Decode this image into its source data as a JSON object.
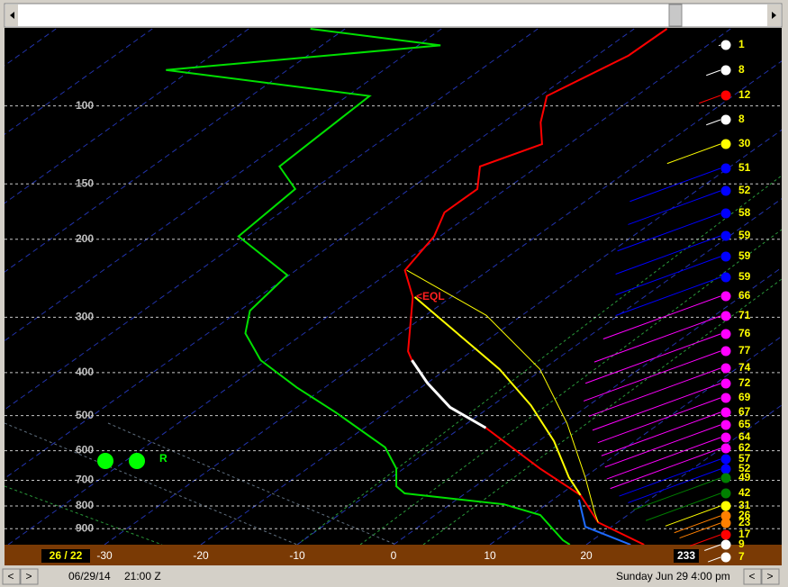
{
  "chart_data": {
    "type": "skewt",
    "ylim": [
      67,
      978
    ],
    "yticks": [
      100,
      150,
      200,
      300,
      400,
      500,
      600,
      700,
      800,
      900
    ],
    "xlim": [
      -40,
      40
    ],
    "xticks": [
      -30,
      -20,
      -10,
      0,
      10,
      20
    ],
    "log_y": true,
    "grid": true,
    "series": [
      {
        "color": "#ff0000",
        "width": 2,
        "x": [
          -46.6,
          -46.7,
          -49.3,
          -46.1,
          -42.8,
          -46,
          -43,
          -43,
          -40.6,
          -38.7,
          -34,
          -26.6,
          -24.9,
          -20,
          -14.1,
          -7.4,
          4.1,
          12.2,
          18,
          26
        ],
        "values": [
          67,
          77,
          95,
          109,
          122,
          137,
          154,
          174,
          197,
          235,
          270,
          358,
          375,
          422,
          479,
          533,
          658,
          756,
          871,
          978
        ]
      },
      {
        "color": "#00e000",
        "width": 2,
        "x": [
          -83.6,
          -67.7,
          -92.6,
          -67.7,
          -66.8,
          -61.9,
          -60.9,
          -50.2,
          -48.9,
          -46.1,
          -40.6,
          -32.9,
          -25.2,
          -15,
          -10.8,
          -8.2,
          -6.3,
          5.6,
          10.9,
          16.9,
          18.3
        ],
        "values": [
          67,
          73,
          83,
          95,
          137,
          154,
          197,
          241,
          290,
          326,
          375,
          432,
          492,
          590,
          658,
          722,
          749,
          793,
          838,
          955,
          978
        ]
      },
      {
        "color": "#ffffff",
        "width": 3,
        "x": [
          -24.9,
          -20,
          -14.1,
          -7.4
        ],
        "values": [
          375,
          422,
          479,
          533
        ]
      },
      {
        "color": "#ffff00",
        "width": 2,
        "x": [
          -33.8,
          -14.5,
          -6,
          1.6,
          8.4,
          12.2
        ],
        "values": [
          270,
          393,
          474,
          571,
          689,
          756
        ]
      },
      {
        "color": "#ffff00",
        "width": 1,
        "x": [
          -38.5,
          -23.7,
          -10.3,
          0.4,
          10.1,
          16.3,
          18
        ],
        "values": [
          235,
          297,
          393,
          521,
          689,
          830,
          871
        ]
      },
      {
        "color": "#1e6bff",
        "width": 2,
        "x": [
          12.7,
          17.3,
          24.6
        ],
        "values": [
          774,
          891,
          978
        ]
      }
    ],
    "annotation": "<EQL",
    "marker_label": "R",
    "surface": "26 / 22",
    "readout": "233",
    "winds": {
      "speeds": [
        1,
        8,
        12,
        8,
        30,
        51,
        52,
        58,
        59,
        59,
        59,
        66,
        71,
        76,
        77,
        74,
        72,
        69,
        67,
        65,
        64,
        62,
        57,
        52,
        49,
        42,
        31,
        26,
        23,
        17,
        9,
        7
      ],
      "colors": [
        "#ffffff",
        "#ffffff",
        "#ff0000",
        "#ffffff",
        "#ffff00",
        "#0000ff",
        "#0000ff",
        "#0000ff",
        "#0000ff",
        "#0000ff",
        "#0000ff",
        "#ff00ff",
        "#ff00ff",
        "#ff00ff",
        "#ff00ff",
        "#ff00ff",
        "#ff00ff",
        "#ff00ff",
        "#ff00ff",
        "#ff00ff",
        "#ff00ff",
        "#ff00ff",
        "#0000ff",
        "#0000ff",
        "#008000",
        "#008000",
        "#ffff00",
        "#ff8000",
        "#ff8000",
        "#ff0000",
        "#ffffff",
        "#ffffff"
      ]
    }
  },
  "status_bar": {
    "buttons": [
      "<",
      ">"
    ],
    "date": "06/29/14",
    "time": "21:00 Z",
    "local": "Sunday   Jun 29  4:00 pm"
  }
}
